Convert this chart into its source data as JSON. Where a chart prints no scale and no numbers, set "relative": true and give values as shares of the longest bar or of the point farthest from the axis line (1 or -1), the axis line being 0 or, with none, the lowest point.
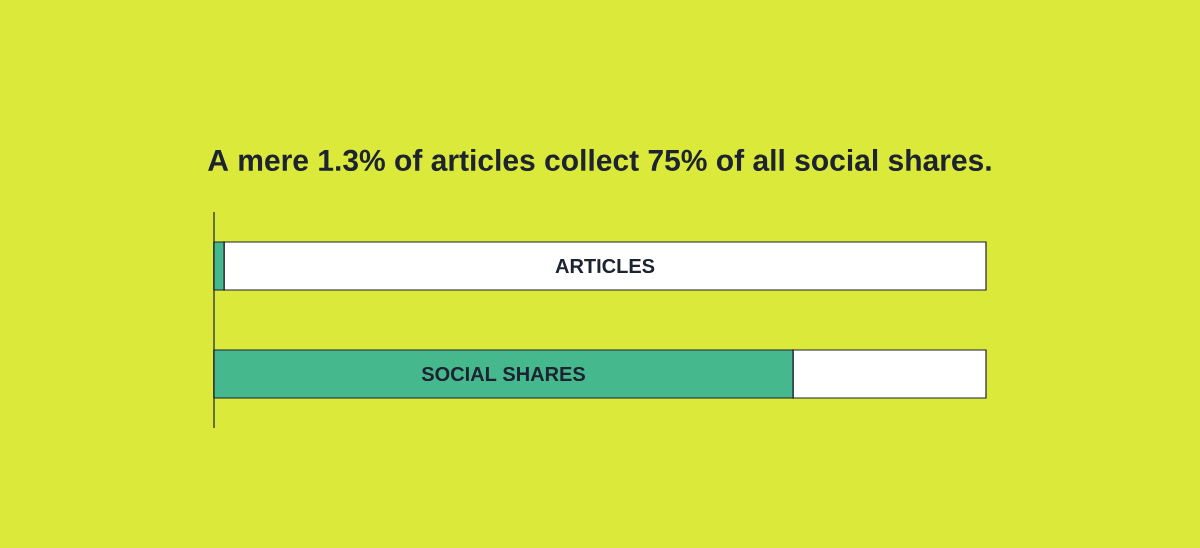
{
  "chart_data": {
    "type": "bar",
    "title": "A mere 1.3% of articles collect 75% of all social shares.",
    "orientation": "horizontal",
    "stacked": true,
    "relative": true,
    "categories": [
      "ARTICLES",
      "SOCIAL SHARES"
    ],
    "series": [
      {
        "color": "#46b88e",
        "values": [
          0.013,
          0.75
        ]
      },
      {
        "color": "#ffffff",
        "values": [
          0.987,
          0.25
        ]
      }
    ]
  }
}
